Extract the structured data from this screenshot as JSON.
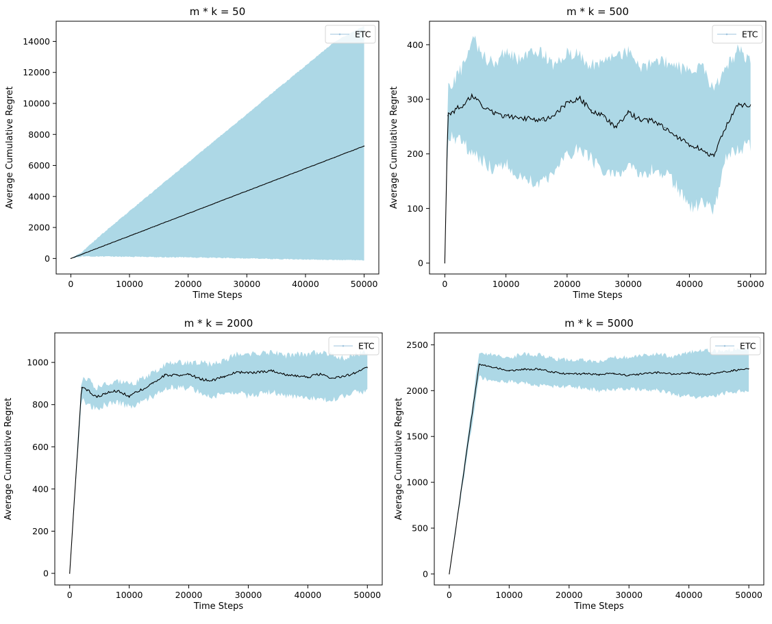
{
  "chart_data": [
    {
      "type": "line",
      "title": "m * k = 50",
      "xlabel": "Time Steps",
      "ylabel": "Average Cumulative Regret",
      "xlim": [
        -2500,
        52500
      ],
      "ylim": [
        -1000,
        15300
      ],
      "xticks": [
        0,
        10000,
        20000,
        30000,
        40000,
        50000
      ],
      "yticks": [
        0,
        2000,
        4000,
        6000,
        8000,
        10000,
        12000,
        14000
      ],
      "legend": {
        "label": "ETC",
        "loc": "upper-right"
      },
      "band_color": "#add8e6",
      "line_color": "#000000",
      "series": [
        {
          "name": "ETC",
          "x": [
            0,
            2000,
            5000,
            10000,
            15000,
            20000,
            25000,
            30000,
            35000,
            40000,
            45000,
            50000
          ],
          "mean": [
            0,
            290,
            725,
            1450,
            2175,
            2900,
            3625,
            4350,
            5075,
            5800,
            6525,
            7250
          ],
          "upper": [
            0,
            450,
            1480,
            3050,
            4620,
            6180,
            7750,
            9300,
            10880,
            12430,
            13990,
            15000
          ],
          "lower": [
            0,
            150,
            130,
            110,
            90,
            70,
            40,
            10,
            -30,
            -60,
            -90,
            -120
          ],
          "noise": 12
        }
      ]
    },
    {
      "type": "line",
      "title": "m * k = 500",
      "xlabel": "Time Steps",
      "ylabel": "Average Cumulative Regret",
      "xlim": [
        -2500,
        52500
      ],
      "ylim": [
        -20,
        443
      ],
      "xticks": [
        0,
        10000,
        20000,
        30000,
        40000,
        50000
      ],
      "yticks": [
        0,
        100,
        200,
        300,
        400
      ],
      "legend": {
        "label": "ETC",
        "loc": "upper-right"
      },
      "band_color": "#add8e6",
      "line_color": "#000000",
      "series": [
        {
          "name": "ETC",
          "x": [
            0,
            500,
            1000,
            3000,
            4500,
            6000,
            8000,
            10000,
            12000,
            14000,
            16000,
            18000,
            20000,
            22000,
            24000,
            26000,
            28000,
            30000,
            32000,
            34000,
            36000,
            38000,
            40000,
            42000,
            44000,
            46000,
            48000,
            50000
          ],
          "mean": [
            0,
            270,
            275,
            290,
            305,
            290,
            275,
            268,
            265,
            265,
            262,
            270,
            295,
            302,
            280,
            268,
            250,
            275,
            262,
            262,
            248,
            232,
            215,
            210,
            195,
            250,
            290,
            290
          ],
          "upper": [
            0,
            320,
            325,
            360,
            420,
            380,
            365,
            390,
            370,
            390,
            385,
            360,
            385,
            380,
            360,
            375,
            375,
            390,
            350,
            375,
            370,
            360,
            350,
            360,
            320,
            360,
            390,
            370
          ],
          "lower": [
            0,
            230,
            230,
            220,
            200,
            190,
            170,
            180,
            165,
            150,
            150,
            170,
            195,
            210,
            190,
            165,
            165,
            175,
            165,
            170,
            165,
            140,
            100,
            110,
            95,
            190,
            210,
            215
          ],
          "noise": 5
        }
      ]
    },
    {
      "type": "line",
      "title": "m * k = 2000",
      "xlabel": "Time Steps",
      "ylabel": "Average Cumulative Regret",
      "xlim": [
        -2500,
        52500
      ],
      "ylim": [
        -55,
        1140
      ],
      "xticks": [
        0,
        10000,
        20000,
        30000,
        40000,
        50000
      ],
      "yticks": [
        0,
        200,
        400,
        600,
        800,
        1000
      ],
      "legend": {
        "label": "ETC",
        "loc": "upper-right"
      },
      "band_color": "#add8e6",
      "line_color": "#000000",
      "series": [
        {
          "name": "ETC",
          "x": [
            0,
            2000,
            3000,
            4500,
            6000,
            8000,
            10000,
            11000,
            12000,
            14000,
            16000,
            18000,
            20000,
            22000,
            24000,
            26000,
            28000,
            30000,
            32000,
            34000,
            36000,
            38000,
            40000,
            42000,
            44000,
            46000,
            48000,
            50000
          ],
          "mean": [
            0,
            880,
            870,
            835,
            855,
            865,
            840,
            860,
            870,
            900,
            940,
            940,
            945,
            920,
            915,
            935,
            955,
            950,
            955,
            960,
            945,
            935,
            930,
            945,
            925,
            935,
            950,
            975
          ],
          "upper": [
            0,
            920,
            920,
            880,
            895,
            910,
            900,
            900,
            920,
            950,
            990,
            1000,
            1000,
            1000,
            990,
            1010,
            1040,
            1040,
            1040,
            1050,
            1030,
            1040,
            1040,
            1050,
            1040,
            1020,
            1040,
            1050
          ],
          "lower": [
            0,
            830,
            800,
            780,
            800,
            810,
            790,
            800,
            815,
            840,
            880,
            880,
            880,
            860,
            840,
            850,
            860,
            840,
            850,
            860,
            840,
            840,
            830,
            830,
            820,
            840,
            860,
            865
          ],
          "noise": 6
        }
      ]
    },
    {
      "type": "line",
      "title": "m * k = 5000",
      "xlabel": "Time Steps",
      "ylabel": "Average Cumulative Regret",
      "xlim": [
        -2500,
        52500
      ],
      "ylim": [
        -120,
        2630
      ],
      "xticks": [
        0,
        10000,
        20000,
        30000,
        40000,
        50000
      ],
      "yticks": [
        0,
        500,
        1000,
        1500,
        2000,
        2500
      ],
      "legend": {
        "label": "ETC",
        "loc": "upper-right"
      },
      "band_color": "#add8e6",
      "line_color": "#000000",
      "series": [
        {
          "name": "ETC",
          "x": [
            0,
            5000,
            7000,
            10000,
            12500,
            15000,
            17500,
            20000,
            22500,
            25000,
            27500,
            30000,
            32500,
            35000,
            37500,
            40000,
            42500,
            45000,
            47500,
            50000
          ],
          "mean": [
            0,
            2290,
            2260,
            2220,
            2230,
            2235,
            2200,
            2180,
            2185,
            2175,
            2190,
            2165,
            2185,
            2200,
            2180,
            2195,
            2175,
            2195,
            2220,
            2240
          ],
          "upper": [
            0,
            2420,
            2400,
            2360,
            2400,
            2390,
            2350,
            2330,
            2330,
            2320,
            2360,
            2360,
            2380,
            2400,
            2370,
            2420,
            2440,
            2430,
            2450,
            2460
          ],
          "lower": [
            0,
            2150,
            2110,
            2100,
            2090,
            2060,
            2050,
            2040,
            2030,
            2000,
            2010,
            2020,
            2010,
            2000,
            1960,
            1940,
            1920,
            1960,
            1990,
            1990
          ],
          "noise": 10
        }
      ]
    }
  ]
}
